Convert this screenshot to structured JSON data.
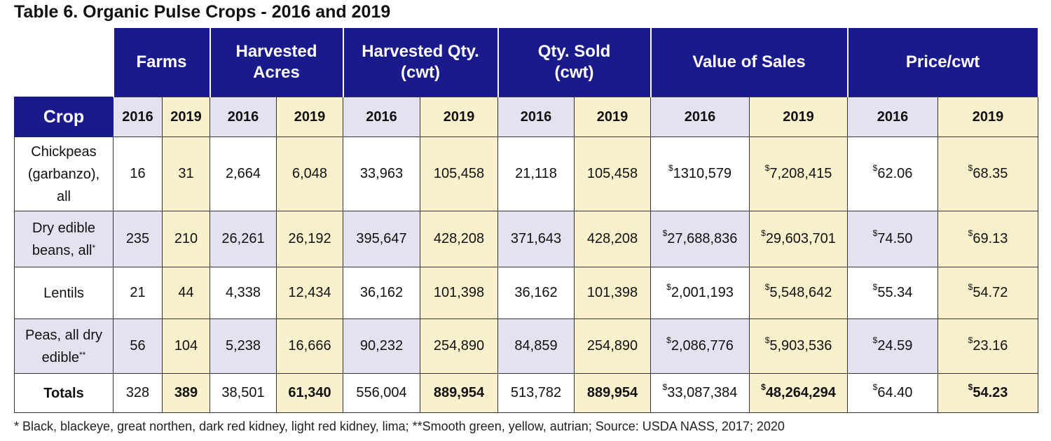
{
  "title": "Table 6. Organic Pulse Crops - 2016 and 2019",
  "groups": [
    "Farms",
    "Harvested\nAcres",
    "Harvested Qty.\n(cwt)",
    "Qty. Sold\n(cwt)",
    "Value of Sales",
    "Price/cwt"
  ],
  "crop_header": "Crop",
  "years": [
    "2016",
    "2019"
  ],
  "rows": [
    {
      "name": "Chickpeas\n(garbanzo),\nall",
      "farms_2016": "16",
      "farms_2019": "31",
      "acres_2016": "2,664",
      "acres_2019": "6,048",
      "hqty_2016": "33,963",
      "hqty_2019": "105,458",
      "sold_2016": "21,118",
      "sold_2019": "105,458",
      "value_2016": "1310,579",
      "value_2019": "7,208,415",
      "price_2016": "62.06",
      "price_2019": "68.35"
    },
    {
      "name": "Dry edible\nbeans, all*",
      "farms_2016": "235",
      "farms_2019": "210",
      "acres_2016": "26,261",
      "acres_2019": "26,192",
      "hqty_2016": "395,647",
      "hqty_2019": "428,208",
      "sold_2016": "371,643",
      "sold_2019": "428,208",
      "value_2016": "27,688,836",
      "value_2019": "29,603,701",
      "price_2016": "74.50",
      "price_2019": "69.13"
    },
    {
      "name": "Lentils",
      "farms_2016": "21",
      "farms_2019": "44",
      "acres_2016": "4,338",
      "acres_2019": "12,434",
      "hqty_2016": "36,162",
      "hqty_2019": "101,398",
      "sold_2016": "36,162",
      "sold_2019": "101,398",
      "value_2016": "2,001,193",
      "value_2019": "5,548,642",
      "price_2016": "55.34",
      "price_2019": "54.72"
    },
    {
      "name": "Peas, all dry\nedible**",
      "farms_2016": "56",
      "farms_2019": "104",
      "acres_2016": "5,238",
      "acres_2019": "16,666",
      "hqty_2016": "90,232",
      "hqty_2019": "254,890",
      "sold_2016": "84,859",
      "sold_2019": "254,890",
      "value_2016": "2,086,776",
      "value_2019": "5,903,536",
      "price_2016": "24.59",
      "price_2019": "23.16"
    }
  ],
  "totals": {
    "name": "Totals",
    "farms_2016": "328",
    "farms_2019": "389",
    "acres_2016": "38,501",
    "acres_2019": "61,340",
    "hqty_2016": "556,004",
    "hqty_2019": "889,954",
    "sold_2016": "513,782",
    "sold_2019": "889,954",
    "value_2016": "33,087,384",
    "value_2019": "48,264,294",
    "price_2016": "64.40",
    "price_2019": "54.23"
  },
  "currency_symbol": "$",
  "footnote": "* Black, blackeye, great northen, dark red kidney, light red kidney, lima;  **Smooth green, yellow, autrian;  Source: USDA NASS, 2017; 2020",
  "colors": {
    "header_navy": "#1a1a8c",
    "col_2016_lavender": "#e3e2f1",
    "col_2019_cream": "#fbf0cc"
  }
}
